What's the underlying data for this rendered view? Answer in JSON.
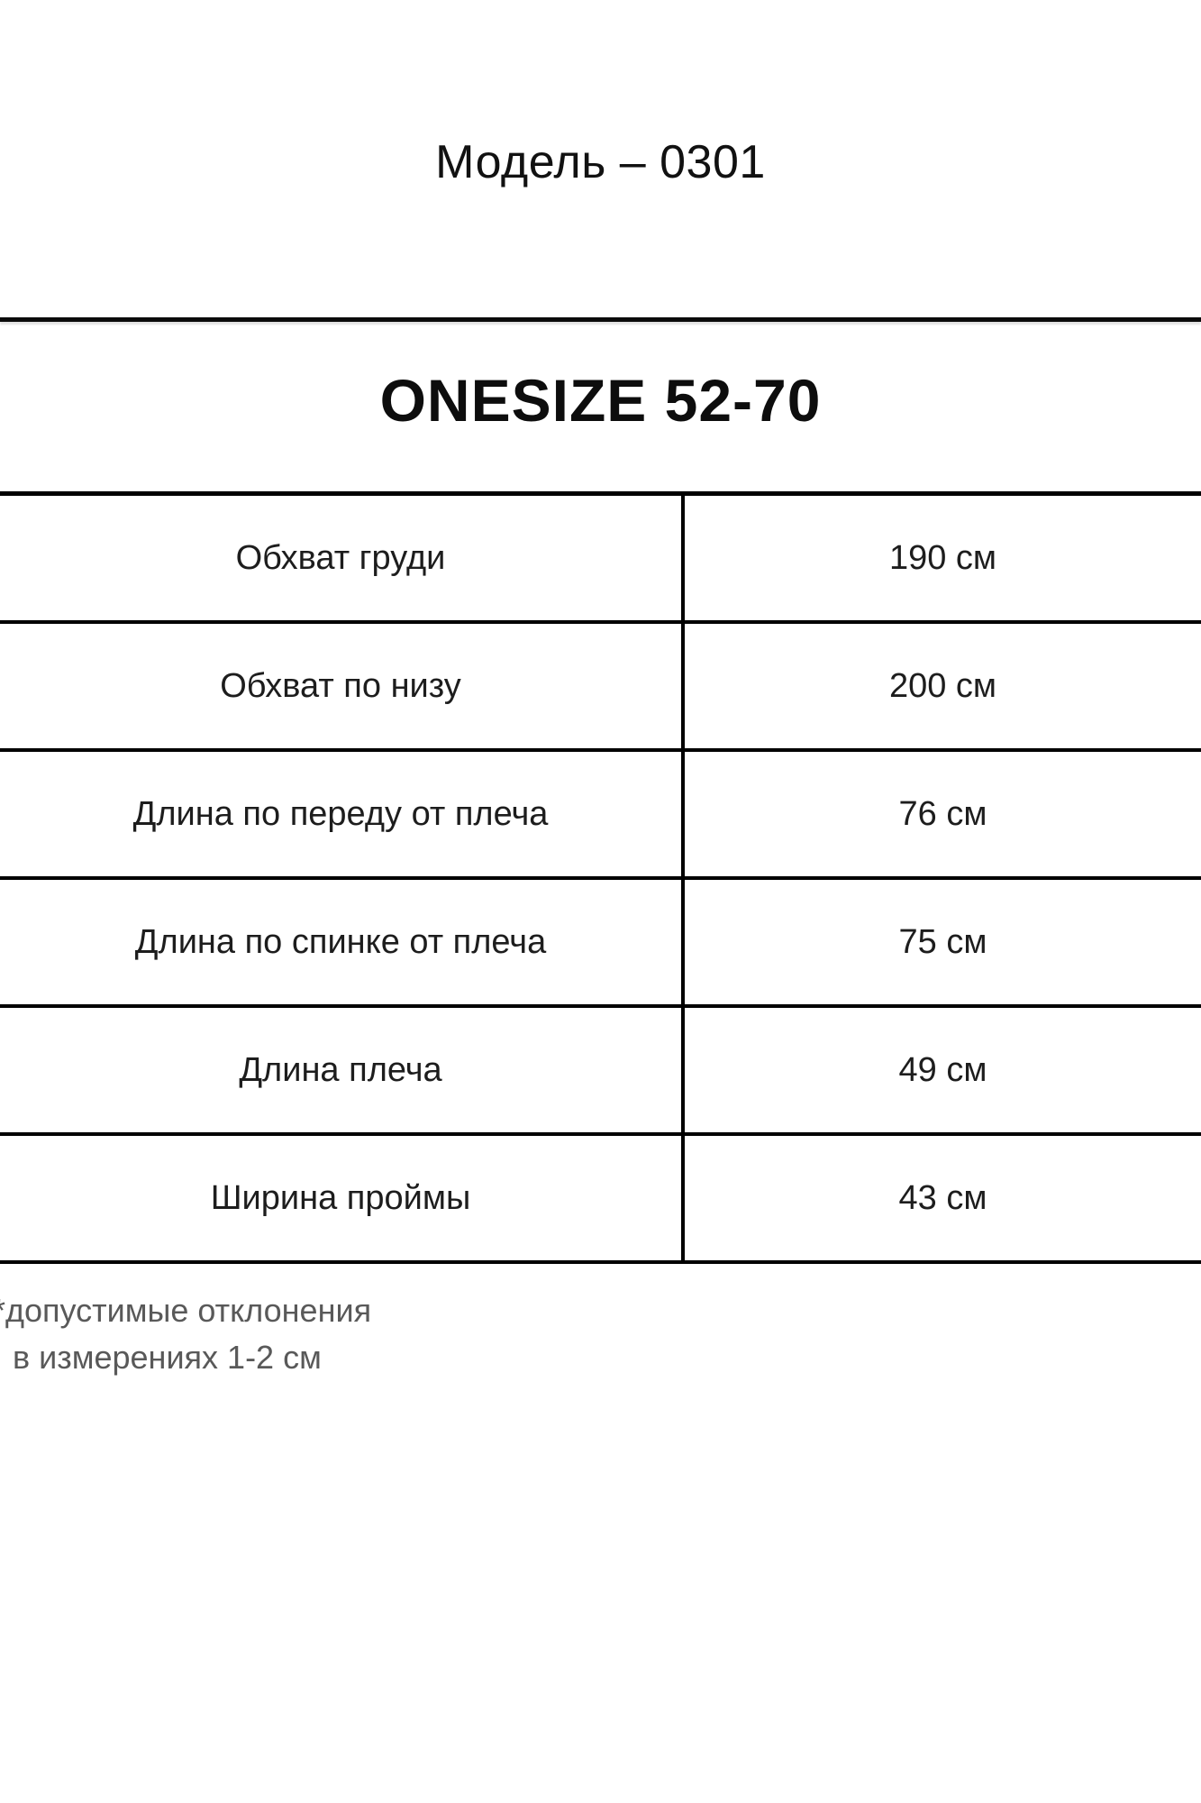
{
  "page": {
    "title": "Модель – 0301"
  },
  "size_chart": {
    "header": "ONESIZE 52-70",
    "rows": [
      {
        "label": "Обхват груди",
        "value": "190 см"
      },
      {
        "label": "Обхват по низу",
        "value": "200 см"
      },
      {
        "label": "Длина по переду от плеча",
        "value": "76 см"
      },
      {
        "label": "Длина по спинке от плеча",
        "value": "75 см"
      },
      {
        "label": "Длина плеча",
        "value": "49 см"
      },
      {
        "label": "Ширина проймы",
        "value": "43 см"
      }
    ],
    "footnote_line1": "*допустимые отклонения",
    "footnote_line2": "в измерениях 1-2 см"
  },
  "colors": {
    "text": "#1a1a1a",
    "border": "#000000",
    "footnote": "#595959",
    "background": "#ffffff"
  }
}
